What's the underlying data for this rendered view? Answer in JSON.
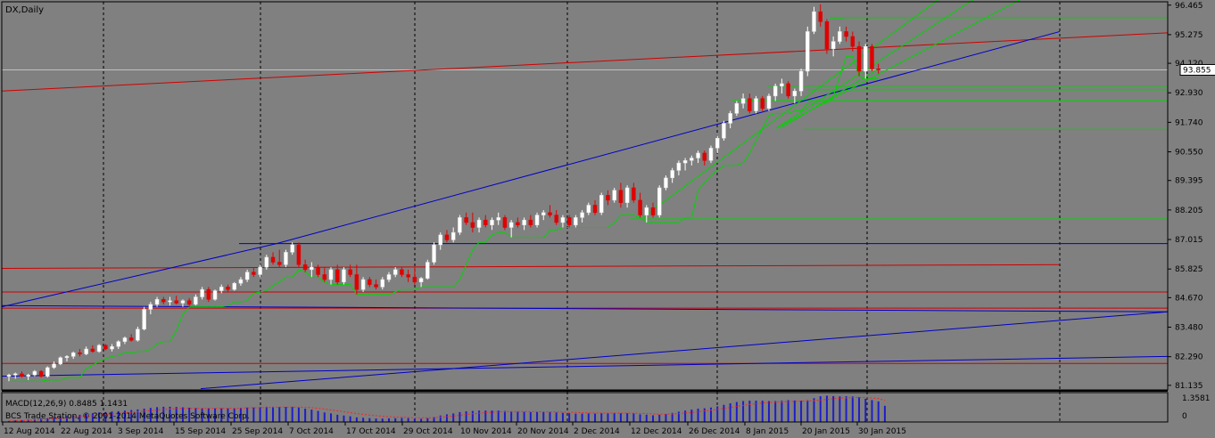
{
  "colors": {
    "background": "#808080",
    "axis": "#000000",
    "grid": "#000000",
    "up_candle": "#ffffff",
    "down_candle": "#e00000",
    "trend_green": "#00d400",
    "trend_red": "#d00000",
    "trend_blue": "#0000c8",
    "price_tag_bg": "#ffffff",
    "macd_hist": "#1e1ec8",
    "macd_signal": "#ff2020",
    "current_line": "#c0c0c0"
  },
  "chart_data": {
    "type": "candlestick",
    "title": "DX,Daily",
    "symbol": "DX",
    "timeframe": "Daily",
    "current_price": "93.855",
    "ylim": [
      80.95,
      96.6
    ],
    "y_ticks": [
      "96.465",
      "95.275",
      "94.120",
      "92.930",
      "91.740",
      "90.550",
      "89.395",
      "88.205",
      "87.015",
      "85.825",
      "84.670",
      "83.480",
      "82.290",
      "81.135"
    ],
    "x_ticks": [
      "12 Aug 2014",
      "22 Aug 2014",
      "3 Sep 2014",
      "15 Sep 2014",
      "25 Sep 2014",
      "7 Oct 2014",
      "17 Oct 2014",
      "29 Oct 2014",
      "10 Nov 2014",
      "20 Nov 2014",
      "2 Dec 2014",
      "12 Dec 2014",
      "26 Dec 2014",
      "8 Jan 2015",
      "20 Jan 2015",
      "30 Jan 2015"
    ],
    "grid": "vertical dashed",
    "candles": [
      [
        81.5,
        81.6,
        81.3,
        81.55
      ],
      [
        81.55,
        81.65,
        81.4,
        81.6
      ],
      [
        81.6,
        81.7,
        81.45,
        81.5
      ],
      [
        81.5,
        81.6,
        81.35,
        81.55
      ],
      [
        81.55,
        81.75,
        81.5,
        81.7
      ],
      [
        81.7,
        81.75,
        81.45,
        81.5
      ],
      [
        81.5,
        81.9,
        81.45,
        81.85
      ],
      [
        81.85,
        82.1,
        81.8,
        82.0
      ],
      [
        82.0,
        82.3,
        81.95,
        82.25
      ],
      [
        82.25,
        82.35,
        82.1,
        82.3
      ],
      [
        82.3,
        82.5,
        82.2,
        82.45
      ],
      [
        82.45,
        82.6,
        82.3,
        82.4
      ],
      [
        82.4,
        82.7,
        82.35,
        82.6
      ],
      [
        82.6,
        82.75,
        82.45,
        82.5
      ],
      [
        82.5,
        82.8,
        82.45,
        82.75
      ],
      [
        82.75,
        82.8,
        82.55,
        82.6
      ],
      [
        82.6,
        82.8,
        82.5,
        82.7
      ],
      [
        82.7,
        82.95,
        82.6,
        82.9
      ],
      [
        82.9,
        83.1,
        82.8,
        83.05
      ],
      [
        83.05,
        83.2,
        82.9,
        82.95
      ],
      [
        82.95,
        83.5,
        82.9,
        83.4
      ],
      [
        83.4,
        84.3,
        83.35,
        84.2
      ],
      [
        84.2,
        84.5,
        84.0,
        84.4
      ],
      [
        84.4,
        84.7,
        84.3,
        84.6
      ],
      [
        84.6,
        84.7,
        84.4,
        84.5
      ],
      [
        84.5,
        84.7,
        84.35,
        84.55
      ],
      [
        84.55,
        84.75,
        84.4,
        84.45
      ],
      [
        84.45,
        84.6,
        84.3,
        84.55
      ],
      [
        84.55,
        84.65,
        84.3,
        84.4
      ],
      [
        84.4,
        84.8,
        84.35,
        84.7
      ],
      [
        84.7,
        85.1,
        84.6,
        85.0
      ],
      [
        85.0,
        85.1,
        84.5,
        84.6
      ],
      [
        84.6,
        85.0,
        84.55,
        84.95
      ],
      [
        84.95,
        85.2,
        84.85,
        85.1
      ],
      [
        85.1,
        85.2,
        84.9,
        85.0
      ],
      [
        85.0,
        85.3,
        84.95,
        85.25
      ],
      [
        85.25,
        85.5,
        85.15,
        85.4
      ],
      [
        85.4,
        85.8,
        85.3,
        85.7
      ],
      [
        85.7,
        85.9,
        85.5,
        85.6
      ],
      [
        85.6,
        86.0,
        85.5,
        85.9
      ],
      [
        85.9,
        86.4,
        85.8,
        86.3
      ],
      [
        86.3,
        86.5,
        86.0,
        86.1
      ],
      [
        86.1,
        86.6,
        85.9,
        86.0
      ],
      [
        86.0,
        86.6,
        85.9,
        86.5
      ],
      [
        86.5,
        86.9,
        86.4,
        86.8
      ],
      [
        86.8,
        86.9,
        85.9,
        86.0
      ],
      [
        86.0,
        86.2,
        85.7,
        85.8
      ],
      [
        85.8,
        86.1,
        85.5,
        85.9
      ],
      [
        85.9,
        86.0,
        85.5,
        85.6
      ],
      [
        85.6,
        85.9,
        85.3,
        85.4
      ],
      [
        85.4,
        85.9,
        85.2,
        85.8
      ],
      [
        85.8,
        86.0,
        85.2,
        85.3
      ],
      [
        85.3,
        85.9,
        85.2,
        85.8
      ],
      [
        85.8,
        86.0,
        85.5,
        85.6
      ],
      [
        85.6,
        86.0,
        84.8,
        85.0
      ],
      [
        85.0,
        85.5,
        84.9,
        85.4
      ],
      [
        85.4,
        85.5,
        85.1,
        85.2
      ],
      [
        85.2,
        85.4,
        85.0,
        85.1
      ],
      [
        85.1,
        85.5,
        85.0,
        85.4
      ],
      [
        85.4,
        85.7,
        85.3,
        85.6
      ],
      [
        85.6,
        85.9,
        85.5,
        85.8
      ],
      [
        85.8,
        85.9,
        85.5,
        85.6
      ],
      [
        85.6,
        85.8,
        85.3,
        85.5
      ],
      [
        85.5,
        85.9,
        85.2,
        85.3
      ],
      [
        85.3,
        85.5,
        85.1,
        85.45
      ],
      [
        85.45,
        86.2,
        85.4,
        86.1
      ],
      [
        86.1,
        86.9,
        86.0,
        86.8
      ],
      [
        86.8,
        87.3,
        86.6,
        87.2
      ],
      [
        87.2,
        87.4,
        86.9,
        87.0
      ],
      [
        87.0,
        87.5,
        86.9,
        87.3
      ],
      [
        87.3,
        88.0,
        87.2,
        87.9
      ],
      [
        87.9,
        88.1,
        87.6,
        87.7
      ],
      [
        87.7,
        88.1,
        87.3,
        87.5
      ],
      [
        87.5,
        87.9,
        87.3,
        87.8
      ],
      [
        87.8,
        88.0,
        87.5,
        87.6
      ],
      [
        87.6,
        87.9,
        87.4,
        87.8
      ],
      [
        87.8,
        88.1,
        87.6,
        87.9
      ],
      [
        87.9,
        88.0,
        87.4,
        87.5
      ],
      [
        87.5,
        87.8,
        87.1,
        87.7
      ],
      [
        87.7,
        87.9,
        87.5,
        87.6
      ],
      [
        87.6,
        87.9,
        87.4,
        87.8
      ],
      [
        87.8,
        88.0,
        87.5,
        87.6
      ],
      [
        87.6,
        88.1,
        87.5,
        88.0
      ],
      [
        88.0,
        88.2,
        87.8,
        88.1
      ],
      [
        88.1,
        88.4,
        87.9,
        88.0
      ],
      [
        88.0,
        88.2,
        87.6,
        87.7
      ],
      [
        87.7,
        88.0,
        87.5,
        87.9
      ],
      [
        87.9,
        88.0,
        87.5,
        87.6
      ],
      [
        87.6,
        88.0,
        87.5,
        87.9
      ],
      [
        87.9,
        88.2,
        87.7,
        88.1
      ],
      [
        88.1,
        88.5,
        88.0,
        88.4
      ],
      [
        88.4,
        88.6,
        88.0,
        88.1
      ],
      [
        88.1,
        88.9,
        88.0,
        88.8
      ],
      [
        88.8,
        89.0,
        88.4,
        88.6
      ],
      [
        88.6,
        89.1,
        88.5,
        89.0
      ],
      [
        89.0,
        89.3,
        88.3,
        88.5
      ],
      [
        88.5,
        89.2,
        88.3,
        89.1
      ],
      [
        89.1,
        89.3,
        88.5,
        88.6
      ],
      [
        88.6,
        88.9,
        87.9,
        88.0
      ],
      [
        88.0,
        88.4,
        87.7,
        88.3
      ],
      [
        88.3,
        88.5,
        87.9,
        88.0
      ],
      [
        88.0,
        89.2,
        87.9,
        89.1
      ],
      [
        89.1,
        89.6,
        89.0,
        89.5
      ],
      [
        89.5,
        89.9,
        89.3,
        89.8
      ],
      [
        89.8,
        90.2,
        89.6,
        90.1
      ],
      [
        90.1,
        90.3,
        89.8,
        90.2
      ],
      [
        90.2,
        90.4,
        90.0,
        90.3
      ],
      [
        90.3,
        90.6,
        90.1,
        90.5
      ],
      [
        90.5,
        90.6,
        90.0,
        90.2
      ],
      [
        90.2,
        90.8,
        90.1,
        90.7
      ],
      [
        90.7,
        91.2,
        90.5,
        91.1
      ],
      [
        91.1,
        91.8,
        91.0,
        91.7
      ],
      [
        91.7,
        92.2,
        91.5,
        92.1
      ],
      [
        92.1,
        92.6,
        92.0,
        92.5
      ],
      [
        92.5,
        92.9,
        92.3,
        92.7
      ],
      [
        92.7,
        92.9,
        92.1,
        92.2
      ],
      [
        92.2,
        92.8,
        92.1,
        92.7
      ],
      [
        92.7,
        92.8,
        92.2,
        92.3
      ],
      [
        92.3,
        92.9,
        92.2,
        92.8
      ],
      [
        92.8,
        93.3,
        92.6,
        93.2
      ],
      [
        93.2,
        93.5,
        92.9,
        93.3
      ],
      [
        93.3,
        93.4,
        92.7,
        92.8
      ],
      [
        92.8,
        93.1,
        92.5,
        93.0
      ],
      [
        93.0,
        93.9,
        92.8,
        93.8
      ],
      [
        93.8,
        95.6,
        93.6,
        95.4
      ],
      [
        95.4,
        96.4,
        95.3,
        96.2
      ],
      [
        96.2,
        96.5,
        95.6,
        95.8
      ],
      [
        95.8,
        95.9,
        94.5,
        94.7
      ],
      [
        94.7,
        95.2,
        94.4,
        95.0
      ],
      [
        95.0,
        95.6,
        94.9,
        95.4
      ],
      [
        95.4,
        95.6,
        95.0,
        95.2
      ],
      [
        95.2,
        95.4,
        94.6,
        94.8
      ],
      [
        94.8,
        95.0,
        93.6,
        93.8
      ],
      [
        93.8,
        94.9,
        93.5,
        94.8
      ],
      [
        94.8,
        94.9,
        93.8,
        93.9
      ],
      [
        93.9,
        94.1,
        93.7,
        93.855
      ]
    ],
    "vlines": [
      "12 Aug 2014",
      "22 Aug 2014",
      "3 Sep 2014",
      "15 Sep 2014",
      "25 Sep 2014",
      "7 Oct 2014",
      "17 Oct 2014",
      "29 Oct 2014",
      "10 Nov 2014",
      "20 Nov 2014",
      "2 Dec 2014",
      "12 Dec 2014",
      "26 Dec 2014",
      "8 Jan 2015",
      "20 Jan 2015",
      "30 Jan 2015"
    ],
    "horizontal_levels": {
      "red": [
        84.25,
        84.9,
        82.02
      ],
      "blue": [
        86.85
      ],
      "green": [
        95.96,
        93.21,
        93.05,
        92.61,
        91.46,
        87.84
      ]
    },
    "macd": {
      "label": "MACD(12,26,9) 0.8485 1.1431",
      "y_tick_top": "1.3581",
      "y_tick_zero": "0",
      "histogram": [
        0.05,
        0.08,
        0.1,
        0.12,
        0.15,
        0.18,
        0.2,
        0.24,
        0.28,
        0.3,
        0.34,
        0.38,
        0.42,
        0.46,
        0.5,
        0.52,
        0.55,
        0.57,
        0.6,
        0.63,
        0.66,
        0.7,
        0.74,
        0.78,
        0.8,
        0.8,
        0.79,
        0.77,
        0.75,
        0.74,
        0.74,
        0.72,
        0.72,
        0.72,
        0.72,
        0.73,
        0.74,
        0.76,
        0.76,
        0.78,
        0.8,
        0.8,
        0.79,
        0.79,
        0.8,
        0.76,
        0.7,
        0.65,
        0.58,
        0.5,
        0.45,
        0.38,
        0.34,
        0.3,
        0.24,
        0.22,
        0.2,
        0.18,
        0.18,
        0.19,
        0.2,
        0.21,
        0.2,
        0.18,
        0.17,
        0.2,
        0.26,
        0.34,
        0.4,
        0.45,
        0.52,
        0.56,
        0.58,
        0.6,
        0.6,
        0.6,
        0.6,
        0.58,
        0.56,
        0.54,
        0.53,
        0.52,
        0.52,
        0.52,
        0.52,
        0.5,
        0.48,
        0.46,
        0.44,
        0.44,
        0.45,
        0.44,
        0.46,
        0.46,
        0.47,
        0.46,
        0.46,
        0.45,
        0.4,
        0.38,
        0.35,
        0.38,
        0.42,
        0.48,
        0.54,
        0.6,
        0.65,
        0.7,
        0.72,
        0.76,
        0.82,
        0.9,
        0.98,
        1.05,
        1.1,
        1.12,
        1.12,
        1.12,
        1.1,
        1.1,
        1.12,
        1.15,
        1.13,
        1.12,
        1.14,
        1.25,
        1.35,
        1.38,
        1.36,
        1.34,
        1.35,
        1.34,
        1.3,
        1.22,
        1.15,
        1.08,
        0.85
      ],
      "signal": [
        0.05,
        0.06,
        0.07,
        0.08,
        0.1,
        0.12,
        0.14,
        0.16,
        0.19,
        0.21,
        0.24,
        0.27,
        0.3,
        0.33,
        0.36,
        0.39,
        0.42,
        0.45,
        0.48,
        0.51,
        0.54,
        0.57,
        0.6,
        0.63,
        0.66,
        0.68,
        0.7,
        0.71,
        0.72,
        0.72,
        0.72,
        0.72,
        0.72,
        0.72,
        0.72,
        0.72,
        0.73,
        0.74,
        0.75,
        0.75,
        0.76,
        0.77,
        0.78,
        0.78,
        0.78,
        0.78,
        0.77,
        0.75,
        0.72,
        0.68,
        0.64,
        0.59,
        0.54,
        0.49,
        0.44,
        0.4,
        0.36,
        0.33,
        0.3,
        0.28,
        0.26,
        0.25,
        0.24,
        0.23,
        0.22,
        0.22,
        0.23,
        0.25,
        0.28,
        0.31,
        0.35,
        0.39,
        0.43,
        0.46,
        0.49,
        0.51,
        0.53,
        0.54,
        0.55,
        0.55,
        0.55,
        0.55,
        0.54,
        0.54,
        0.53,
        0.53,
        0.52,
        0.51,
        0.5,
        0.49,
        0.48,
        0.47,
        0.47,
        0.47,
        0.47,
        0.47,
        0.47,
        0.46,
        0.45,
        0.44,
        0.42,
        0.41,
        0.41,
        0.42,
        0.44,
        0.47,
        0.5,
        0.54,
        0.58,
        0.62,
        0.66,
        0.71,
        0.76,
        0.82,
        0.87,
        0.92,
        0.96,
        1.0,
        1.02,
        1.04,
        1.06,
        1.07,
        1.08,
        1.09,
        1.1,
        1.12,
        1.15,
        1.19,
        1.22,
        1.25,
        1.27,
        1.28,
        1.29,
        1.28,
        1.26,
        1.23,
        1.1431
      ]
    }
  },
  "footer": {
    "copyright": "BCS Trade Station, © 2001-2014 MetaQuotes Software Corp."
  }
}
